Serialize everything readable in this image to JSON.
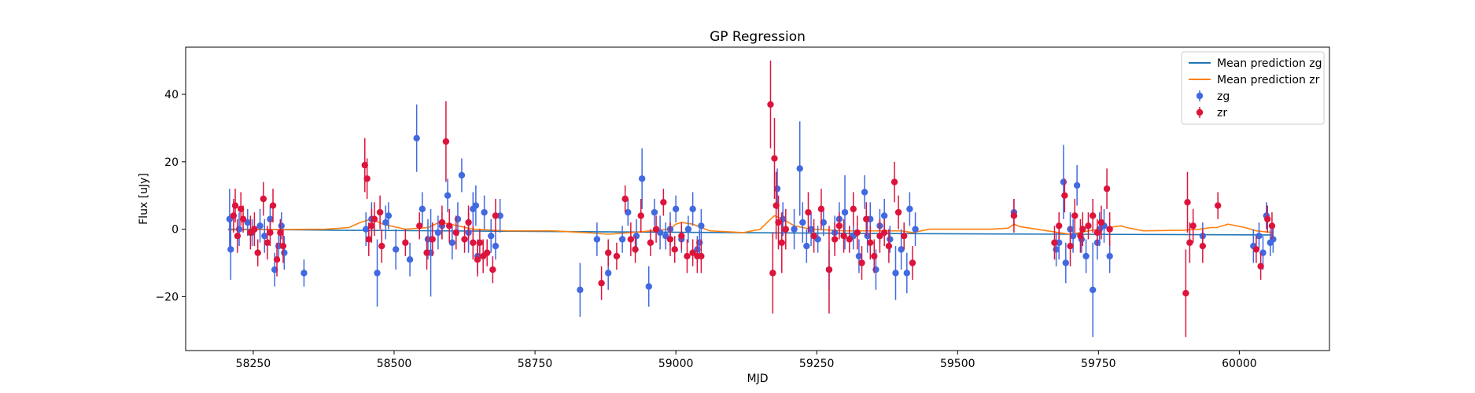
{
  "chart_data": {
    "type": "scatter",
    "title": "GP Regression",
    "xlabel": "MJD",
    "ylabel": "Flux [uJy]",
    "xlim": [
      58130,
      60160
    ],
    "ylim": [
      -36,
      54
    ],
    "xticks": [
      58250,
      58500,
      58750,
      59000,
      59250,
      59500,
      59750,
      60000
    ],
    "yticks": [
      -20,
      0,
      20,
      40
    ],
    "grid": false,
    "legend_position": "top-right",
    "legend": [
      {
        "label": "Mean prediction zg",
        "kind": "line",
        "color": "#1f77b4"
      },
      {
        "label": "Mean prediction zr",
        "kind": "line",
        "color": "#ff7f0e"
      },
      {
        "label": "zg",
        "kind": "errorbar",
        "color": "#4169e1"
      },
      {
        "label": "zr",
        "kind": "errorbar",
        "color": "#dc143c"
      }
    ],
    "series": [
      {
        "name": "zg",
        "kind": "errorbar",
        "color": "#4169e1",
        "points": [
          [
            58208,
            3,
            9
          ],
          [
            58210,
            -6,
            9
          ],
          [
            58225,
            0,
            5
          ],
          [
            58240,
            2,
            4
          ],
          [
            58248,
            -1,
            4
          ],
          [
            58262,
            1,
            5
          ],
          [
            58270,
            -2,
            5
          ],
          [
            58280,
            3,
            4
          ],
          [
            58288,
            -12,
            5
          ],
          [
            58295,
            -5,
            4
          ],
          [
            58300,
            1,
            4
          ],
          [
            58305,
            -7,
            5
          ],
          [
            58340,
            -13,
            4
          ],
          [
            58450,
            0,
            5
          ],
          [
            58460,
            3,
            5
          ],
          [
            58470,
            -13,
            10
          ],
          [
            58485,
            2,
            5
          ],
          [
            58490,
            4,
            4
          ],
          [
            58503,
            -6,
            6
          ],
          [
            58528,
            -9,
            5
          ],
          [
            58540,
            27,
            10
          ],
          [
            58550,
            6,
            5
          ],
          [
            58560,
            -3,
            6
          ],
          [
            58565,
            -7,
            13
          ],
          [
            58578,
            -1,
            5
          ],
          [
            58585,
            1,
            4
          ],
          [
            58595,
            10,
            5
          ],
          [
            58603,
            -4,
            5
          ],
          [
            58613,
            3,
            5
          ],
          [
            58620,
            16,
            5
          ],
          [
            58632,
            -1,
            6
          ],
          [
            58640,
            6,
            5
          ],
          [
            58645,
            7,
            6
          ],
          [
            58648,
            -8,
            5
          ],
          [
            58660,
            5,
            5
          ],
          [
            58672,
            -2,
            5
          ],
          [
            58680,
            -5,
            4
          ],
          [
            58688,
            4,
            5
          ],
          [
            58830,
            -18,
            8
          ],
          [
            58860,
            -3,
            5
          ],
          [
            58880,
            -13,
            5
          ],
          [
            58905,
            -3,
            4
          ],
          [
            58915,
            5,
            4
          ],
          [
            58930,
            -2,
            5
          ],
          [
            58940,
            15,
            9
          ],
          [
            58952,
            -17,
            6
          ],
          [
            58962,
            5,
            4
          ],
          [
            58972,
            -1,
            5
          ],
          [
            58982,
            -2,
            4
          ],
          [
            58990,
            0,
            5
          ],
          [
            59000,
            6,
            4
          ],
          [
            59010,
            -3,
            4
          ],
          [
            59022,
            0,
            4
          ],
          [
            59030,
            6,
            5
          ],
          [
            59038,
            -6,
            4
          ],
          [
            59042,
            -4,
            4
          ],
          [
            59045,
            1,
            5
          ],
          [
            59180,
            12,
            6
          ],
          [
            59190,
            3,
            5
          ],
          [
            59210,
            0,
            6
          ],
          [
            59220,
            18,
            14
          ],
          [
            59225,
            2,
            6
          ],
          [
            59232,
            -5,
            5
          ],
          [
            59240,
            0,
            5
          ],
          [
            59252,
            -3,
            4
          ],
          [
            59262,
            2,
            4
          ],
          [
            59272,
            -12,
            6
          ],
          [
            59282,
            -1,
            5
          ],
          [
            59290,
            3,
            5
          ],
          [
            59300,
            5,
            11
          ],
          [
            59315,
            -2,
            4
          ],
          [
            59325,
            -8,
            5
          ],
          [
            59335,
            11,
            5
          ],
          [
            59340,
            -2,
            5
          ],
          [
            59345,
            3,
            5
          ],
          [
            59355,
            -12,
            6
          ],
          [
            59362,
            1,
            5
          ],
          [
            59370,
            4,
            5
          ],
          [
            59380,
            -3,
            4
          ],
          [
            59390,
            -13,
            8
          ],
          [
            59400,
            -6,
            6
          ],
          [
            59410,
            -13,
            6
          ],
          [
            59415,
            6,
            5
          ],
          [
            59425,
            0,
            5
          ],
          [
            59600,
            5,
            4
          ],
          [
            59675,
            -6,
            5
          ],
          [
            59680,
            -4,
            5
          ],
          [
            59688,
            14,
            11
          ],
          [
            59692,
            -10,
            6
          ],
          [
            59700,
            0,
            5
          ],
          [
            59705,
            -2,
            5
          ],
          [
            59712,
            13,
            6
          ],
          [
            59720,
            -3,
            4
          ],
          [
            59728,
            -8,
            5
          ],
          [
            59740,
            -18,
            14
          ],
          [
            59748,
            -4,
            5
          ],
          [
            59752,
            0,
            5
          ],
          [
            59760,
            1,
            5
          ],
          [
            59770,
            -8,
            5
          ],
          [
            59935,
            -2,
            4
          ],
          [
            60025,
            -5,
            5
          ],
          [
            60035,
            -2,
            4
          ],
          [
            60042,
            -7,
            5
          ],
          [
            60048,
            4,
            4
          ],
          [
            60055,
            -4,
            4
          ],
          [
            60060,
            -3,
            4
          ]
        ]
      },
      {
        "name": "zr",
        "kind": "errorbar",
        "color": "#dc143c",
        "points": [
          [
            58215,
            4,
            5
          ],
          [
            58218,
            7,
            5
          ],
          [
            58222,
            -2,
            5
          ],
          [
            58228,
            6,
            5
          ],
          [
            58232,
            3,
            4
          ],
          [
            58245,
            -1,
            5
          ],
          [
            58252,
            0,
            5
          ],
          [
            58258,
            -7,
            4
          ],
          [
            58268,
            9,
            5
          ],
          [
            58275,
            -4,
            5
          ],
          [
            58280,
            -1,
            4
          ],
          [
            58285,
            7,
            5
          ],
          [
            58292,
            -9,
            5
          ],
          [
            58298,
            -1,
            4
          ],
          [
            58303,
            -5,
            5
          ],
          [
            58448,
            19,
            8
          ],
          [
            58452,
            15,
            6
          ],
          [
            58455,
            -3,
            5
          ],
          [
            58460,
            1,
            5
          ],
          [
            58465,
            3,
            5
          ],
          [
            58475,
            5,
            5
          ],
          [
            58478,
            -5,
            5
          ],
          [
            58520,
            -4,
            4
          ],
          [
            58545,
            1,
            4
          ],
          [
            58558,
            -7,
            5
          ],
          [
            58568,
            -3,
            5
          ],
          [
            58585,
            2,
            5
          ],
          [
            58592,
            26,
            12
          ],
          [
            58598,
            1,
            5
          ],
          [
            58610,
            -1,
            5
          ],
          [
            58625,
            -3,
            4
          ],
          [
            58632,
            2,
            5
          ],
          [
            58640,
            -4,
            5
          ],
          [
            58648,
            -9,
            5
          ],
          [
            58652,
            -4,
            4
          ],
          [
            58658,
            -8,
            5
          ],
          [
            58665,
            -7,
            4
          ],
          [
            58675,
            -12,
            4
          ],
          [
            58680,
            4,
            5
          ],
          [
            58868,
            -16,
            5
          ],
          [
            58880,
            -7,
            4
          ],
          [
            58895,
            -8,
            4
          ],
          [
            58910,
            9,
            4
          ],
          [
            58920,
            -3,
            5
          ],
          [
            58928,
            -6,
            4
          ],
          [
            58938,
            4,
            5
          ],
          [
            58955,
            -4,
            4
          ],
          [
            58965,
            0,
            4
          ],
          [
            58978,
            8,
            4
          ],
          [
            58990,
            -3,
            5
          ],
          [
            58998,
            -6,
            4
          ],
          [
            59010,
            -2,
            4
          ],
          [
            59020,
            -8,
            5
          ],
          [
            59030,
            -7,
            4
          ],
          [
            59038,
            -8,
            5
          ],
          [
            59045,
            -8,
            5
          ],
          [
            59168,
            37,
            13
          ],
          [
            59172,
            -13,
            12
          ],
          [
            59175,
            21,
            12
          ],
          [
            59178,
            7,
            10
          ],
          [
            59182,
            2,
            8
          ],
          [
            59188,
            -4,
            9
          ],
          [
            59195,
            0,
            6
          ],
          [
            59235,
            5,
            6
          ],
          [
            59245,
            -2,
            5
          ],
          [
            59258,
            6,
            6
          ],
          [
            59272,
            -12,
            13
          ],
          [
            59282,
            -3,
            5
          ],
          [
            59290,
            1,
            4
          ],
          [
            59298,
            -2,
            5
          ],
          [
            59308,
            -3,
            4
          ],
          [
            59315,
            6,
            5
          ],
          [
            59322,
            -1,
            5
          ],
          [
            59330,
            -10,
            5
          ],
          [
            59338,
            3,
            5
          ],
          [
            59345,
            -4,
            5
          ],
          [
            59352,
            -8,
            5
          ],
          [
            59362,
            -2,
            5
          ],
          [
            59370,
            -1,
            4
          ],
          [
            59378,
            -5,
            5
          ],
          [
            59388,
            14,
            6
          ],
          [
            59395,
            5,
            5
          ],
          [
            59405,
            -2,
            4
          ],
          [
            59420,
            -10,
            5
          ],
          [
            59600,
            4,
            5
          ],
          [
            59672,
            -4,
            5
          ],
          [
            59680,
            1,
            4
          ],
          [
            59690,
            10,
            5
          ],
          [
            59700,
            -5,
            6
          ],
          [
            59708,
            4,
            5
          ],
          [
            59718,
            -2,
            5
          ],
          [
            59722,
            0,
            5
          ],
          [
            59732,
            1,
            4
          ],
          [
            59740,
            4,
            5
          ],
          [
            59748,
            -1,
            4
          ],
          [
            59755,
            2,
            5
          ],
          [
            59765,
            12,
            6
          ],
          [
            59770,
            0,
            5
          ],
          [
            59905,
            -19,
            13
          ],
          [
            59908,
            8,
            9
          ],
          [
            59912,
            -4,
            6
          ],
          [
            59918,
            1,
            5
          ],
          [
            59935,
            -5,
            5
          ],
          [
            59962,
            7,
            4
          ],
          [
            60030,
            -6,
            4
          ],
          [
            60038,
            -11,
            4
          ],
          [
            60050,
            3,
            4
          ],
          [
            60058,
            1,
            4
          ]
        ]
      },
      {
        "name": "Mean prediction zg",
        "kind": "line",
        "color": "#1f77b4",
        "x": [
          58205,
          58400,
          58700,
          59100,
          59400,
          59700,
          60060
        ],
        "y": [
          0,
          -0.3,
          -0.6,
          -1.0,
          -1.3,
          -1.5,
          -1.7
        ]
      },
      {
        "name": "Mean prediction zr",
        "kind": "line",
        "color": "#ff7f0e",
        "x": [
          58205,
          58380,
          58420,
          58440,
          58460,
          58480,
          58520,
          58560,
          58580,
          58600,
          58640,
          58700,
          58780,
          58840,
          58880,
          58920,
          58990,
          59000,
          59010,
          59030,
          59060,
          59120,
          59150,
          59165,
          59175,
          59190,
          59210,
          59240,
          59300,
          59400,
          59420,
          59450,
          59500,
          59560,
          59590,
          59600,
          59610,
          59640,
          59680,
          59700,
          59760,
          59790,
          59800,
          59830,
          59900,
          59930,
          59950,
          59960,
          59980,
          60010,
          60030,
          60060
        ],
        "y": [
          -0.2,
          0,
          0.5,
          2,
          3,
          1.5,
          0,
          0.5,
          2,
          1.5,
          0,
          -0.5,
          -0.5,
          -1,
          -1.5,
          -1,
          0,
          1.5,
          2,
          1.5,
          -0.5,
          -1,
          0,
          2.5,
          4,
          3,
          1,
          0,
          -0.5,
          -0.5,
          -1,
          0,
          0,
          0,
          0.3,
          1.5,
          0.8,
          0,
          -1,
          -1.5,
          0.3,
          1,
          0.5,
          -0.5,
          -0.3,
          0,
          0.5,
          0.5,
          1.5,
          0.5,
          -0.5,
          -1
        ]
      }
    ]
  }
}
